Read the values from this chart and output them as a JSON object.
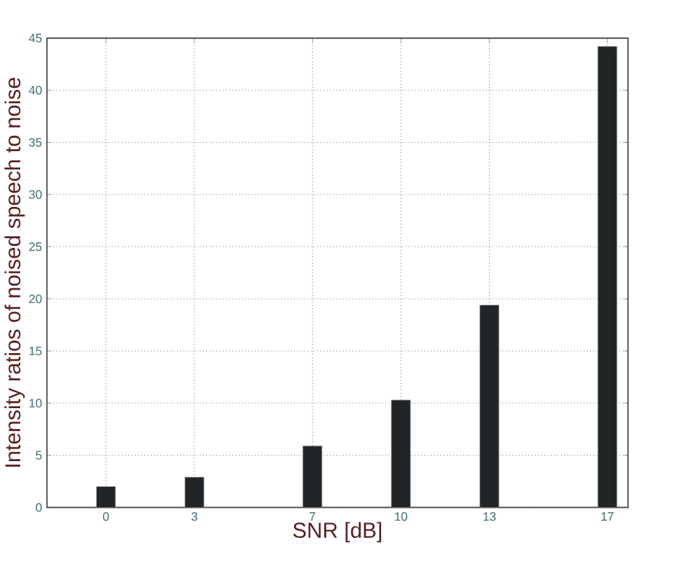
{
  "chart_data": {
    "type": "bar",
    "xlabel": "SNR [dB]",
    "ylabel": "Intensity ratios of noised speech to noise",
    "x": [
      0,
      3,
      7,
      10,
      13,
      17
    ],
    "values": [
      2.0,
      2.9,
      5.9,
      10.3,
      19.4,
      44.2
    ],
    "color": "#222528",
    "xlim": [
      -2,
      17.7
    ],
    "xticks": [
      0,
      3,
      7,
      10,
      13,
      17
    ],
    "ylim": [
      0,
      45
    ],
    "yticks": [
      0,
      5,
      10,
      15,
      20,
      25,
      30,
      35,
      40,
      45
    ],
    "grid": true
  }
}
